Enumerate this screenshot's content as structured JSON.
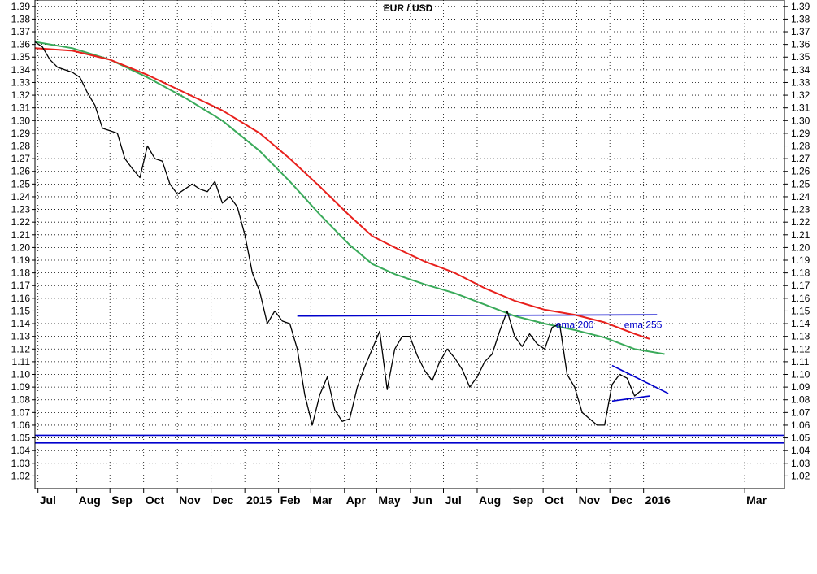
{
  "chart_data": {
    "type": "line",
    "title": "EUR / USD",
    "ylim": [
      1.01,
      1.395
    ],
    "xlim": [
      0,
      100
    ],
    "grid": true,
    "y_ticks": [
      1.02,
      1.03,
      1.04,
      1.05,
      1.06,
      1.07,
      1.08,
      1.09,
      1.1,
      1.11,
      1.12,
      1.13,
      1.14,
      1.15,
      1.16,
      1.17,
      1.18,
      1.19,
      1.2,
      1.21,
      1.22,
      1.23,
      1.24,
      1.25,
      1.26,
      1.27,
      1.28,
      1.29,
      1.3,
      1.31,
      1.32,
      1.33,
      1.34,
      1.35,
      1.36,
      1.37,
      1.38,
      1.39
    ],
    "months": [
      {
        "label": "Jul",
        "x": 0.4
      },
      {
        "label": "Aug",
        "x": 5.6
      },
      {
        "label": "Sep",
        "x": 10.0
      },
      {
        "label": "Oct",
        "x": 14.5
      },
      {
        "label": "Nov",
        "x": 19.0
      },
      {
        "label": "Dec",
        "x": 23.5
      },
      {
        "label": "2015",
        "x": 28.0
      },
      {
        "label": "Feb",
        "x": 32.5
      },
      {
        "label": "Mar",
        "x": 36.8
      },
      {
        "label": "Apr",
        "x": 41.3
      },
      {
        "label": "May",
        "x": 45.6
      },
      {
        "label": "Jun",
        "x": 50.1
      },
      {
        "label": "Jul",
        "x": 54.5
      },
      {
        "label": "Aug",
        "x": 59.0
      },
      {
        "label": "Sep",
        "x": 63.5
      },
      {
        "label": "Oct",
        "x": 67.8
      },
      {
        "label": "Nov",
        "x": 72.3
      },
      {
        "label": "Dec",
        "x": 76.7
      },
      {
        "label": "2016",
        "x": 81.2
      },
      {
        "label": "Mar",
        "x": 94.7
      }
    ],
    "series": [
      {
        "name": "ema 200",
        "color": "#3aaa5a",
        "x": [
          0,
          5,
          10,
          15,
          20,
          25,
          30,
          34,
          38,
          42,
          45,
          48,
          52,
          56,
          60,
          64,
          68,
          72,
          76,
          80,
          84
        ],
        "values": [
          1.362,
          1.357,
          1.348,
          1.334,
          1.318,
          1.3,
          1.276,
          1.252,
          1.226,
          1.202,
          1.187,
          1.179,
          1.171,
          1.164,
          1.155,
          1.146,
          1.14,
          1.135,
          1.129,
          1.12,
          1.116
        ]
      },
      {
        "name": "ema 255",
        "color": "#e8201c",
        "x": [
          0,
          5,
          10,
          15,
          20,
          25,
          30,
          34,
          38,
          42,
          45,
          48,
          52,
          56,
          60,
          64,
          68,
          72,
          76,
          80,
          82
        ],
        "values": [
          1.357,
          1.355,
          1.348,
          1.336,
          1.322,
          1.308,
          1.29,
          1.27,
          1.248,
          1.225,
          1.209,
          1.2,
          1.189,
          1.18,
          1.168,
          1.158,
          1.151,
          1.147,
          1.141,
          1.132,
          1.128
        ]
      },
      {
        "name": "EUR / USD",
        "color": "#000000",
        "x": [
          0,
          1,
          2,
          3,
          4,
          5,
          6,
          7,
          8,
          9,
          10,
          11,
          12,
          13,
          14,
          15,
          16,
          17,
          18,
          19,
          20,
          21,
          22,
          23,
          24,
          25,
          26,
          27,
          28,
          29,
          30,
          31,
          32,
          33,
          34,
          35,
          36,
          37,
          38,
          39,
          40,
          41,
          42,
          43,
          44,
          45,
          46,
          47,
          48,
          49,
          50,
          51,
          52,
          53,
          54,
          55,
          56,
          57,
          58,
          59,
          60,
          61,
          62,
          63,
          64,
          65,
          66,
          67,
          68,
          69,
          70,
          71,
          72,
          73,
          74,
          75,
          76,
          77,
          78,
          79,
          80,
          81
        ],
        "values": [
          1.362,
          1.358,
          1.348,
          1.342,
          1.34,
          1.338,
          1.334,
          1.322,
          1.312,
          1.294,
          1.292,
          1.29,
          1.27,
          1.262,
          1.255,
          1.28,
          1.27,
          1.268,
          1.25,
          1.242,
          1.246,
          1.25,
          1.246,
          1.244,
          1.252,
          1.235,
          1.24,
          1.232,
          1.21,
          1.18,
          1.165,
          1.14,
          1.15,
          1.142,
          1.14,
          1.12,
          1.084,
          1.06,
          1.084,
          1.098,
          1.072,
          1.063,
          1.065,
          1.09,
          1.106,
          1.12,
          1.134,
          1.088,
          1.12,
          1.13,
          1.13,
          1.115,
          1.103,
          1.095,
          1.11,
          1.12,
          1.113,
          1.104,
          1.09,
          1.098,
          1.11,
          1.116,
          1.134,
          1.15,
          1.13,
          1.122,
          1.132,
          1.124,
          1.12,
          1.137,
          1.14,
          1.1,
          1.09,
          1.07,
          1.065,
          1.06,
          1.06,
          1.092,
          1.1,
          1.097,
          1.083,
          1.088
        ]
      }
    ],
    "trendlines": [
      {
        "x": [
          35,
          83
        ],
        "values": [
          1.146,
          1.147
        ],
        "color": "#0000cc"
      },
      {
        "x": [
          0,
          100
        ],
        "values": [
          1.052,
          1.052
        ],
        "color": "#0000cc"
      },
      {
        "x": [
          0,
          100
        ],
        "values": [
          1.046,
          1.046
        ],
        "color": "#0000cc"
      },
      {
        "x": [
          77,
          84.5
        ],
        "values": [
          1.107,
          1.085
        ],
        "color": "#0000cc"
      },
      {
        "x": [
          77,
          82
        ],
        "values": [
          1.079,
          1.083
        ],
        "color": "#0000cc"
      }
    ],
    "annotations": [
      {
        "text": "ema 200",
        "x": 69.5,
        "value": 1.139
      },
      {
        "text": "ema 255",
        "x": 78.6,
        "value": 1.139
      }
    ]
  }
}
